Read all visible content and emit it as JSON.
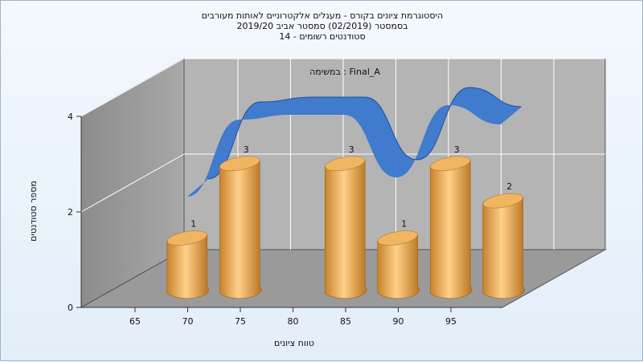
{
  "chart_data": {
    "type": "bar",
    "title_lines": [
      "היסטוגרמת ציונים בקורס - מעגלים אלקטרוניים לאותות מעורבים",
      "בסמסטר  (02/2019)  סמסטר אביב 2019/20",
      "סטודנטים רשומים - 14"
    ],
    "annotation": "במשימה : Final_A",
    "xlabel": "טווח ציונים",
    "ylabel": "מספר סטודנטים",
    "x_ticks": [
      65,
      70,
      75,
      80,
      85,
      90,
      95
    ],
    "y_ticks": [
      0,
      2,
      4
    ],
    "ylim": [
      0,
      4
    ],
    "bars": [
      {
        "x": 67.5,
        "value": 1
      },
      {
        "x": 72.5,
        "value": 3
      },
      {
        "x": 82.5,
        "value": 3
      },
      {
        "x": 87.5,
        "value": 1
      },
      {
        "x": 92.5,
        "value": 3
      },
      {
        "x": 97.5,
        "value": 2
      }
    ],
    "curve": {
      "values": [
        0,
        3.2,
        3.4,
        3.4,
        0.8,
        3.8,
        3.0
      ]
    },
    "colors": {
      "bar": "#e9a545",
      "curve": "#3a78cf",
      "wall": "#b3b3b3",
      "grid": "#ffffff"
    }
  }
}
